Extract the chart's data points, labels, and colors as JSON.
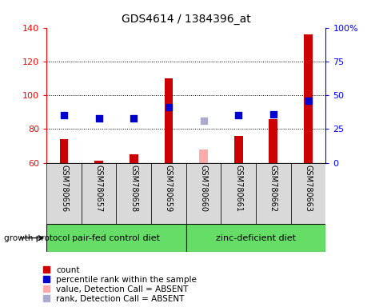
{
  "title": "GDS4614 / 1384396_at",
  "samples": [
    "GSM780656",
    "GSM780657",
    "GSM780658",
    "GSM780659",
    "GSM780660",
    "GSM780661",
    "GSM780662",
    "GSM780663"
  ],
  "count_values": [
    74,
    61,
    65,
    110,
    68,
    76,
    86,
    136
  ],
  "count_absent": [
    false,
    false,
    false,
    false,
    true,
    false,
    false,
    false
  ],
  "rank_values": [
    35,
    33,
    33,
    41,
    31,
    35,
    36,
    46
  ],
  "rank_absent": [
    false,
    false,
    false,
    false,
    true,
    false,
    false,
    false
  ],
  "ylim_left": [
    60,
    140
  ],
  "ylim_right": [
    0,
    100
  ],
  "yticks_left": [
    60,
    80,
    100,
    120,
    140
  ],
  "yticks_right": [
    0,
    25,
    50,
    75,
    100
  ],
  "ytick_labels_right": [
    "0",
    "25",
    "50",
    "75",
    "100%"
  ],
  "group1_label": "pair-fed control diet",
  "group2_label": "zinc-deficient diet",
  "growth_protocol_label": "growth protocol",
  "bar_color_present": "#cc0000",
  "bar_color_absent": "#ffaaaa",
  "dot_color_present": "#0000cc",
  "dot_color_absent": "#aaaacc",
  "bar_width": 0.25,
  "dot_size": 30,
  "group_bg": "#d9d9d9",
  "group2_bg": "#66dd66",
  "legend_items": [
    "count",
    "percentile rank within the sample",
    "value, Detection Call = ABSENT",
    "rank, Detection Call = ABSENT"
  ],
  "legend_colors": [
    "#cc0000",
    "#0000cc",
    "#ffaaaa",
    "#aaaacc"
  ]
}
